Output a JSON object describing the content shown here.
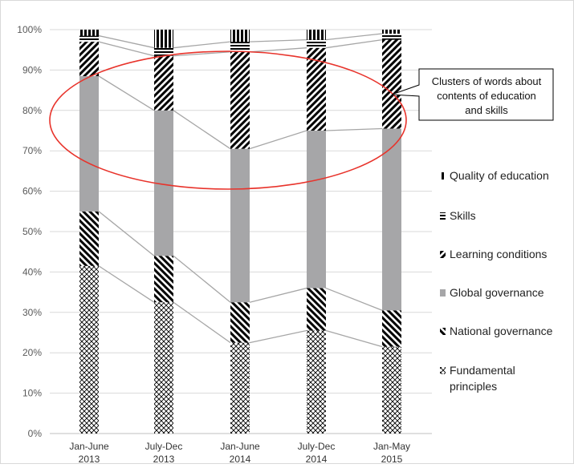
{
  "chart_data": {
    "type": "bar",
    "stacked": true,
    "stack_mode": "percent",
    "categories": [
      "Jan-June\n2013",
      "July-Dec\n2013",
      "Jan-June\n2014",
      "July-Dec\n2014",
      "Jan-May\n2015"
    ],
    "y_ticks": [
      "0%",
      "10%",
      "20%",
      "30%",
      "40%",
      "50%",
      "60%",
      "70%",
      "80%",
      "90%",
      "100%"
    ],
    "ylim": [
      0,
      100
    ],
    "grid": "horizontal",
    "legend_position": "right",
    "series": [
      {
        "name": "Fundamental principles",
        "pattern": "crosshatch-diamond",
        "values": [
          41.5,
          32.5,
          22.5,
          25.5,
          21.5
        ]
      },
      {
        "name": "National governance",
        "pattern": "diagonal-backslash",
        "values": [
          13.5,
          11.5,
          10,
          10.5,
          9
        ]
      },
      {
        "name": "Global governance",
        "pattern": "solid-gray",
        "values": [
          33.5,
          36,
          38,
          39,
          45
        ]
      },
      {
        "name": "Learning conditions",
        "pattern": "diagonal-slash",
        "values": [
          8.5,
          13.5,
          24,
          20.5,
          22
        ]
      },
      {
        "name": "Skills",
        "pattern": "horizontal-stripes",
        "values": [
          1.5,
          2,
          2.5,
          2,
          1.5
        ]
      },
      {
        "name": "Quality of education",
        "pattern": "vertical-stripes",
        "values": [
          1.5,
          4.5,
          3,
          2.5,
          1
        ]
      }
    ],
    "annotation": {
      "text_lines": [
        "Clusters of words  about",
        "contents of education",
        "and skills"
      ],
      "shape": "ellipse",
      "color": "#e8332b"
    }
  }
}
